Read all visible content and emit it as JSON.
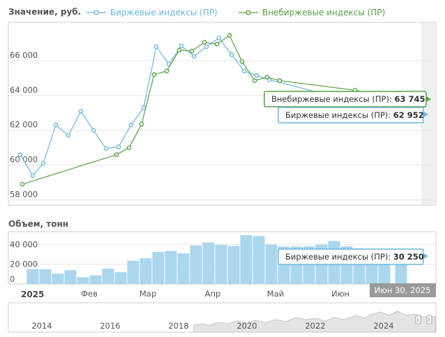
{
  "chart_data": [
    {
      "type": "line",
      "ylabel": "Значение, руб.",
      "yticks": [
        "58 000",
        "60 000",
        "62 000",
        "64 000",
        "66 000"
      ],
      "ylim": [
        57700,
        68200
      ],
      "grid": true,
      "legend_position": "top",
      "series": [
        {
          "name": "Биржевые индексы (ПР)",
          "color": "#6ab6dd",
          "points": [
            [
              "2024-12-30",
              60600
            ],
            [
              "2025-01-05",
              59400
            ],
            [
              "2025-01-10",
              60100
            ],
            [
              "2025-01-16",
              62300
            ],
            [
              "2025-01-22",
              61700
            ],
            [
              "2025-01-28",
              63100
            ],
            [
              "2025-02-03",
              62000
            ],
            [
              "2025-02-09",
              60950
            ],
            [
              "2025-02-15",
              61050
            ],
            [
              "2025-02-21",
              62300
            ],
            [
              "2025-02-27",
              63300
            ],
            [
              "2025-03-05",
              66800
            ],
            [
              "2025-03-11",
              65800
            ],
            [
              "2025-03-17",
              66850
            ],
            [
              "2025-03-23",
              66250
            ],
            [
              "2025-03-29",
              66800
            ],
            [
              "2025-04-04",
              67300
            ],
            [
              "2025-04-10",
              66350
            ],
            [
              "2025-04-16",
              65400
            ],
            [
              "2025-04-22",
              65150
            ],
            [
              "2025-04-28",
              64900
            ],
            [
              "2025-06-30",
              62952
            ]
          ]
        },
        {
          "name": "Внебиржевые индексы (ПР)",
          "color": "#56a144",
          "points": [
            [
              "2024-12-31",
              58900
            ],
            [
              "2025-02-14",
              60600
            ],
            [
              "2025-02-20",
              61000
            ],
            [
              "2025-02-26",
              62350
            ],
            [
              "2025-03-04",
              65200
            ],
            [
              "2025-03-10",
              65400
            ],
            [
              "2025-03-16",
              66600
            ],
            [
              "2025-03-22",
              66550
            ],
            [
              "2025-03-28",
              67050
            ],
            [
              "2025-04-03",
              66950
            ],
            [
              "2025-04-09",
              67450
            ],
            [
              "2025-04-15",
              65950
            ],
            [
              "2025-04-21",
              64850
            ],
            [
              "2025-04-27",
              65050
            ],
            [
              "2025-05-03",
              64850
            ],
            [
              "2025-06-08",
              64300
            ],
            [
              "2025-06-30",
              63745
            ]
          ]
        }
      ]
    },
    {
      "type": "bar",
      "ylabel": "Объем, тонн",
      "yticks": [
        "0",
        "20 000",
        "40 000"
      ],
      "ylim": [
        0,
        53000
      ],
      "series": [
        {
          "name": "Биржевые индексы (ПР)",
          "color": "#aad7ee",
          "points": [
            [
              "2025-01-05",
              15000
            ],
            [
              "2025-01-11",
              15000
            ],
            [
              "2025-01-17",
              10500
            ],
            [
              "2025-01-23",
              14000
            ],
            [
              "2025-01-29",
              6900
            ],
            [
              "2025-02-04",
              8700
            ],
            [
              "2025-02-10",
              15500
            ],
            [
              "2025-02-16",
              12000
            ],
            [
              "2025-02-22",
              23500
            ],
            [
              "2025-02-28",
              26000
            ],
            [
              "2025-03-06",
              32500
            ],
            [
              "2025-03-12",
              33500
            ],
            [
              "2025-03-18",
              31000
            ],
            [
              "2025-03-24",
              39000
            ],
            [
              "2025-03-30",
              42000
            ],
            [
              "2025-04-05",
              39500
            ],
            [
              "2025-04-11",
              38500
            ],
            [
              "2025-04-17",
              49500
            ],
            [
              "2025-04-23",
              48500
            ],
            [
              "2025-04-29",
              40000
            ],
            [
              "2025-05-05",
              38000
            ],
            [
              "2025-05-11",
              38000
            ],
            [
              "2025-05-17",
              38000
            ],
            [
              "2025-05-23",
              40000
            ],
            [
              "2025-05-29",
              43500
            ],
            [
              "2025-06-04",
              38000
            ],
            [
              "2025-06-10",
              36000
            ],
            [
              "2025-06-16",
              32000
            ],
            [
              "2025-06-22",
              31000
            ],
            [
              "2025-06-30",
              30250
            ]
          ]
        }
      ]
    }
  ],
  "time_axis": {
    "year_label": "2025",
    "months": [
      {
        "label": "Фев",
        "date": "2025-02-01"
      },
      {
        "label": "Мар",
        "date": "2025-03-01"
      },
      {
        "label": "Апр",
        "date": "2025-04-01"
      },
      {
        "label": "Май",
        "date": "2025-05-01"
      },
      {
        "label": "Июн",
        "date": "2025-06-01"
      }
    ]
  },
  "navigator": {
    "years": [
      "2014",
      "2016",
      "2018",
      "2020",
      "2022",
      "2024"
    ]
  },
  "tooltips": {
    "otc": {
      "label": "Внебиржевые индексы (ПР):",
      "value": "63 745"
    },
    "exchange": {
      "label": "Биржевые индексы (ПР):",
      "value": "62 952"
    },
    "volume": {
      "label": "Биржевые индексы (ПР):",
      "value": "30 250"
    }
  },
  "date_label": "Июн 30, 2025",
  "legend": {
    "exchange": "Биржевые индексы (ПР)",
    "otc": "Внебиржевые индексы (ПР)"
  }
}
